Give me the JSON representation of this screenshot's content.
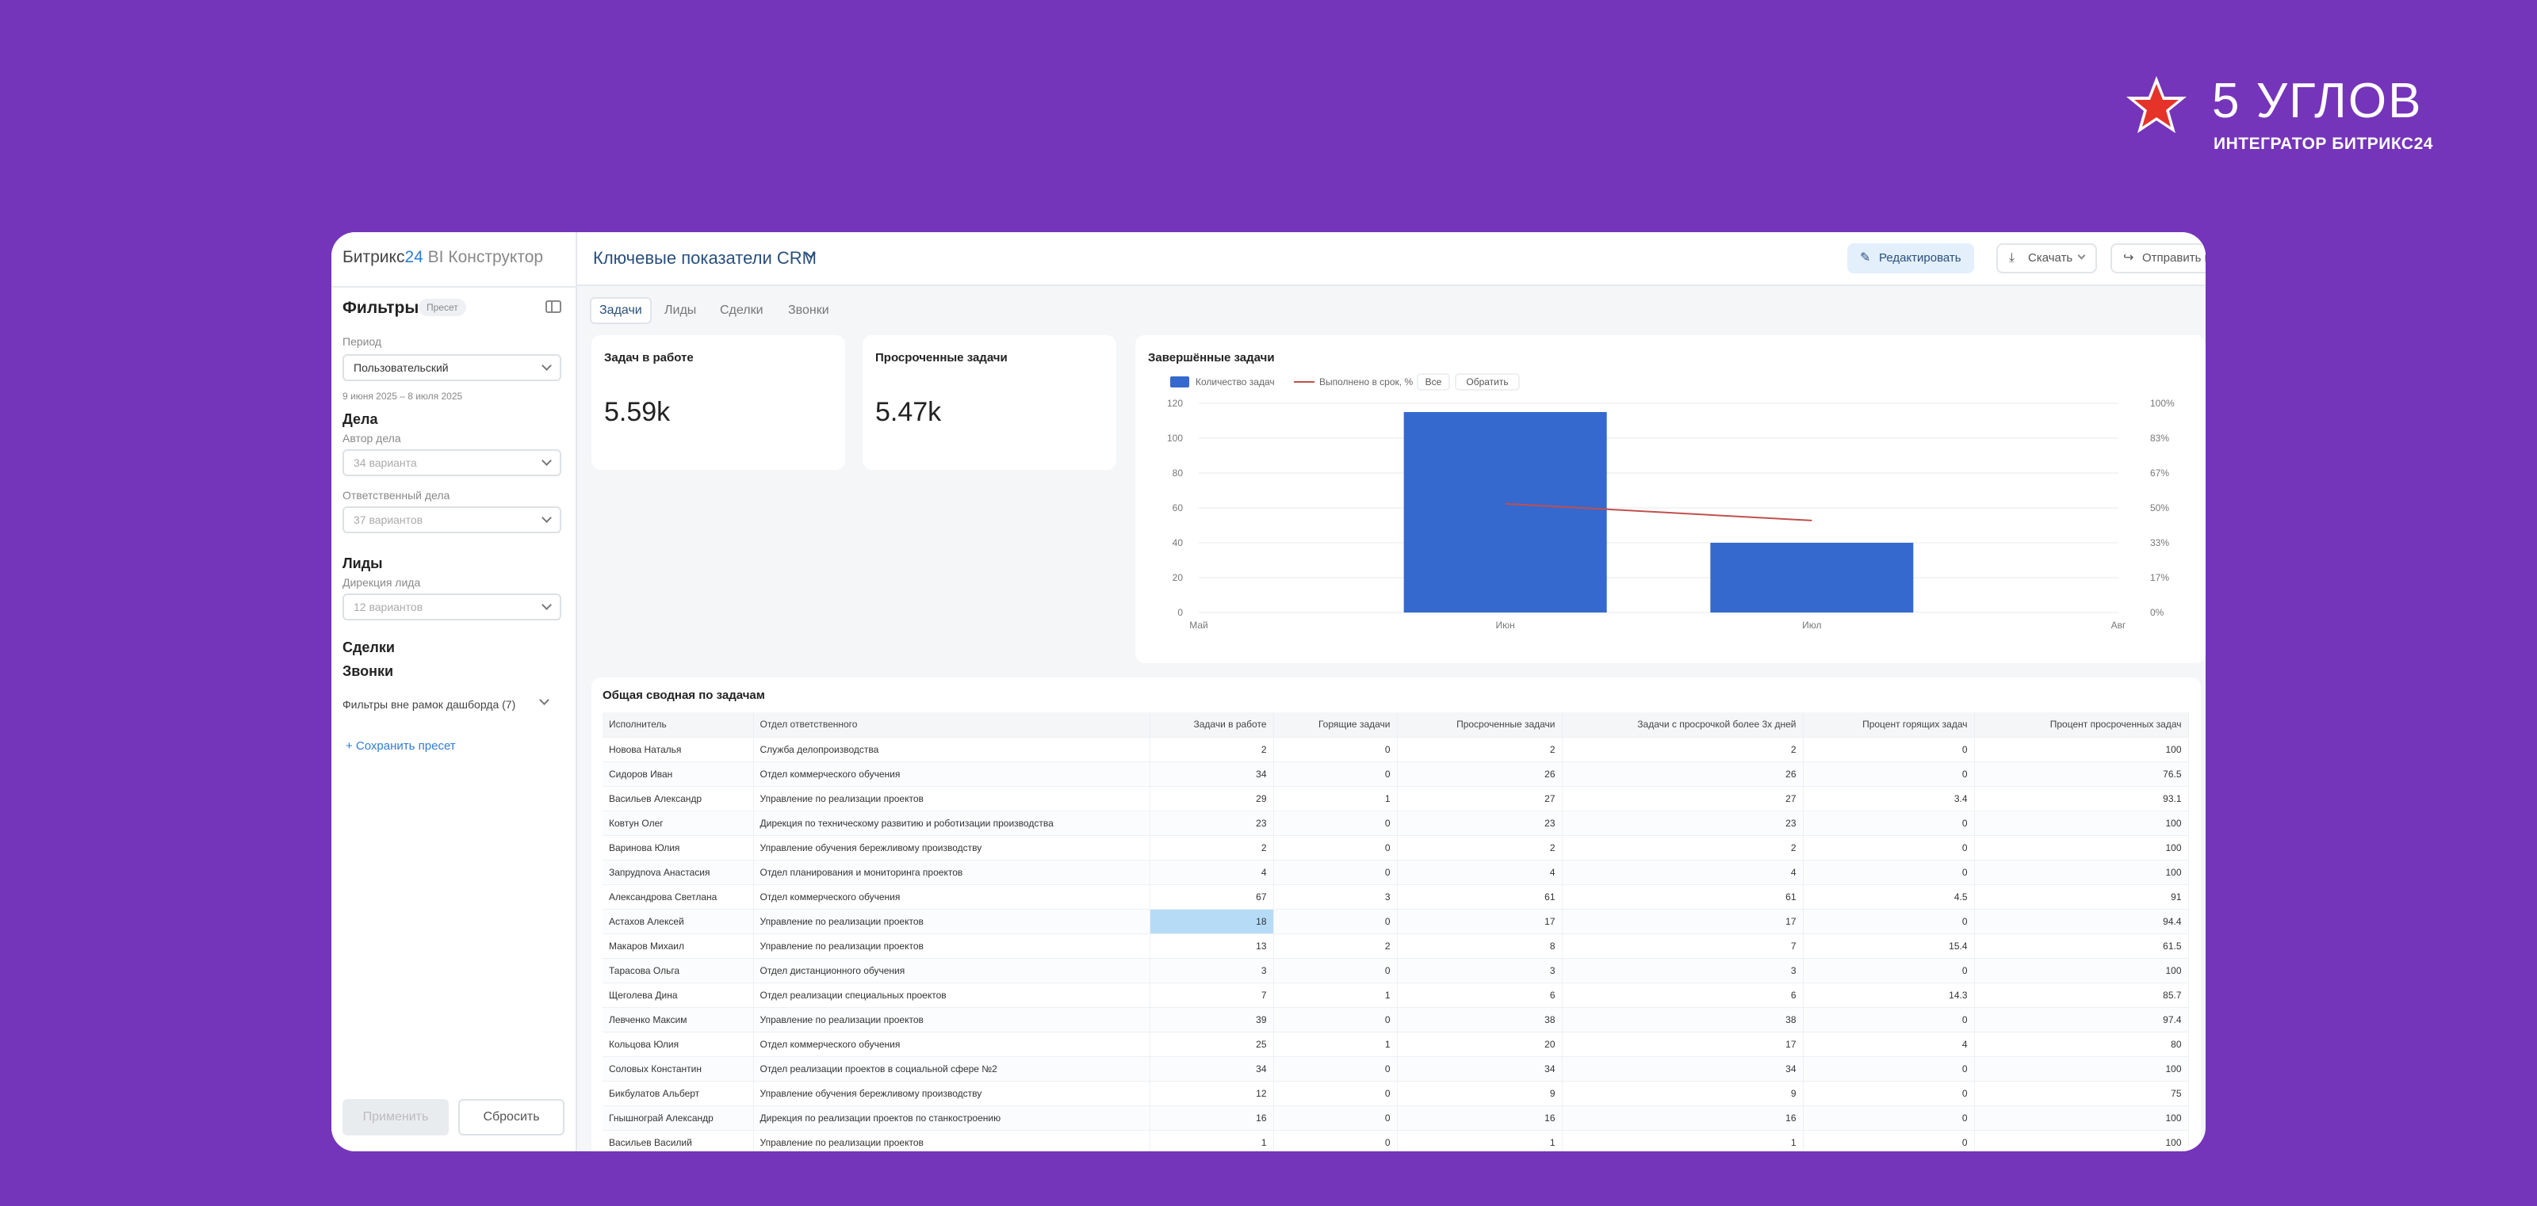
{
  "brand": {
    "name": "5 УГЛОВ",
    "subtitle": "ИНТЕГРАТОР БИТРИКС24"
  },
  "app": {
    "title_part1": "Битрикс",
    "title_part2": "24",
    "title_part3": "BI Конструктор"
  },
  "sidebar": {
    "filters_title": "Фильтры",
    "preset_chip": "Пресет",
    "period_label": "Период",
    "period_value": "Пользовательский",
    "period_dates": "9 июня 2025 – 8 июля 2025",
    "section_deals": "Дела",
    "author_label": "Автор дела",
    "author_value": "34 варианта",
    "responsible_label": "Ответственный дела",
    "responsible_value": "37 вариантов",
    "section_leads": "Лиды",
    "lead_direction_label": "Дирекция лида",
    "lead_direction_value": "12 вариантов",
    "section_sales": "Сделки",
    "section_calls": "Звонки",
    "outside_filters": "Фильтры вне рамок дашборда (7)",
    "save_preset": "+ Сохранить пресет",
    "apply_label": "Применить",
    "reset_label": "Сбросить"
  },
  "header": {
    "dashboard_title": "Ключевые показатели CRM",
    "edit_label": "Редактировать",
    "download_label": "Скачать",
    "send_label": "Отправить в чат"
  },
  "tabs": [
    "Задачи",
    "Лиды",
    "Сделки",
    "Звонки"
  ],
  "kpis": [
    {
      "title": "Задач в работе",
      "value": "5.59k"
    },
    {
      "title": "Просроченные задачи",
      "value": "5.47k"
    }
  ],
  "chart_data": {
    "type": "bar",
    "title": "Завершённые задачи",
    "categories": [
      "Май",
      "Июн",
      "Июл",
      "Авг"
    ],
    "series": [
      {
        "name": "Количество задач",
        "type": "bar",
        "values": [
          null,
          115,
          40,
          null
        ],
        "color": "#3669CE"
      },
      {
        "name": "Выполнено в срок, %",
        "type": "line",
        "values": [
          null,
          52,
          44,
          null
        ],
        "color": "#C0504D"
      }
    ],
    "legend_buttons": [
      "Все",
      "Обратить"
    ],
    "y_ticks": [
      0,
      20,
      40,
      60,
      80,
      100,
      120
    ],
    "y2_ticks": [
      "0%",
      "17%",
      "33%",
      "50%",
      "67%",
      "83%",
      "100%"
    ],
    "ylim": [
      0,
      120
    ],
    "y2lim": [
      0,
      100
    ],
    "grid": true,
    "legend": "top-left"
  },
  "table": {
    "title": "Общая сводная по задачам",
    "columns": [
      "Исполнитель",
      "Отдел ответственного",
      "Задачи в работе",
      "Горящие задачи",
      "Просроченные задачи",
      "Задачи с просрочкой более 3х дней",
      "Процент горящих задач",
      "Процент просроченных задач"
    ],
    "rows": [
      [
        "Новова Наталья",
        "Служба делопроизводства",
        "2",
        "0",
        "2",
        "2",
        "0",
        "100"
      ],
      [
        "Сидоров Иван",
        "Отдел коммерческого обучения",
        "34",
        "0",
        "26",
        "26",
        "0",
        "76.5"
      ],
      [
        "Васильев Александр",
        "Управление по реализации проектов",
        "29",
        "1",
        "27",
        "27",
        "3.4",
        "93.1"
      ],
      [
        "Ковтун Олег",
        "Дирекция по техническому развитию и роботизации производства",
        "23",
        "0",
        "23",
        "23",
        "0",
        "100"
      ],
      [
        "Варинова Юлия",
        "Управление обучения бережливому производству",
        "2",
        "0",
        "2",
        "2",
        "0",
        "100"
      ],
      [
        "Запрудnova Анастасия",
        "Отдел планирования и мониторинга проектов",
        "4",
        "0",
        "4",
        "4",
        "0",
        "100"
      ],
      [
        "Александрова Светлана",
        "Отдел коммерческого обучения",
        "67",
        "3",
        "61",
        "61",
        "4.5",
        "91"
      ],
      [
        "Астахов Алексей",
        "Управление по реализации проектов",
        "18",
        "0",
        "17",
        "17",
        "0",
        "94.4"
      ],
      [
        "Макаров Михаил",
        "Управление по реализации проектов",
        "13",
        "2",
        "8",
        "7",
        "15.4",
        "61.5"
      ],
      [
        "Тарасова Ольга",
        "Отдел дистанционного обучения",
        "3",
        "0",
        "3",
        "3",
        "0",
        "100"
      ],
      [
        "Щеголева Дина",
        "Отдел реализации специальных проектов",
        "7",
        "1",
        "6",
        "6",
        "14.3",
        "85.7"
      ],
      [
        "Левченко Максим",
        "Управление по реализации проектов",
        "39",
        "0",
        "38",
        "38",
        "0",
        "97.4"
      ],
      [
        "Кольцова Юлия",
        "Отдел коммерческого обучения",
        "25",
        "1",
        "20",
        "17",
        "4",
        "80"
      ],
      [
        "Соловых Константин",
        "Отдел реализации проектов в социальной сфере №2",
        "34",
        "0",
        "34",
        "34",
        "0",
        "100"
      ],
      [
        "Бикбулатов Альберт",
        "Управление обучения бережливому производству",
        "12",
        "0",
        "9",
        "9",
        "0",
        "75"
      ],
      [
        "Гнышнограй Александр",
        "Дирекция по реализации проектов по станкостроению",
        "16",
        "0",
        "16",
        "16",
        "0",
        "100"
      ],
      [
        "Васильев Василий",
        "Управление по реализации проектов",
        "1",
        "0",
        "1",
        "1",
        "0",
        "100"
      ]
    ],
    "highlight_cell": {
      "row": 7,
      "col": 2
    }
  }
}
